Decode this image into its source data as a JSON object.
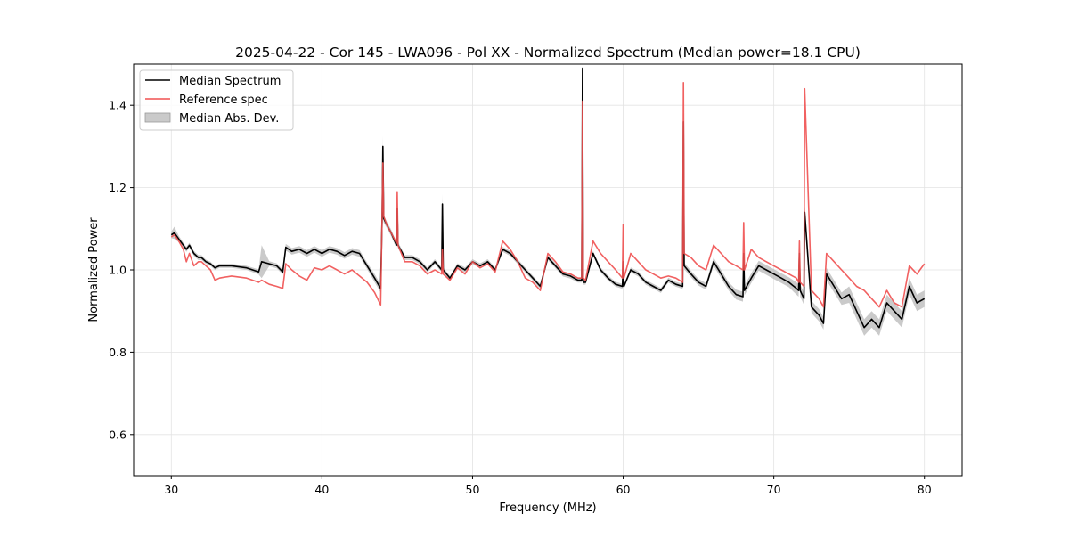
{
  "chart_data": {
    "type": "line",
    "title": "2025-04-22 - Cor 145 - LWA096 - Pol XX - Normalized Spectrum (Median power=18.1 CPU)",
    "xlabel": "Frequency (MHz)",
    "ylabel": "Normalized Power",
    "xlim": [
      27.5,
      82.5
    ],
    "ylim": [
      0.5,
      1.5
    ],
    "xticks": [
      30,
      40,
      50,
      60,
      70,
      80
    ],
    "yticks": [
      0.6,
      0.8,
      1.0,
      1.2,
      1.4
    ],
    "xtick_labels": [
      "30",
      "40",
      "50",
      "60",
      "70",
      "80"
    ],
    "ytick_labels": [
      "0.6",
      "0.8",
      "1.0",
      "1.2",
      "1.4"
    ],
    "grid": true,
    "legend_position": "top-left",
    "legend": [
      "Median Spectrum",
      "Reference spec",
      "Median Abs. Dev."
    ],
    "colors": {
      "median": "#000000",
      "reference": "#f05050",
      "mad": "#bdbdbd",
      "grid": "#e3e3e3"
    },
    "series": [
      {
        "name": "Median Spectrum",
        "x": [
          30.0,
          30.2,
          30.5,
          30.8,
          31.0,
          31.2,
          31.5,
          31.8,
          32.0,
          32.3,
          32.6,
          32.9,
          33.2,
          34.0,
          35.0,
          35.8,
          36.0,
          36.5,
          37.0,
          37.4,
          37.6,
          38.0,
          38.5,
          39.0,
          39.5,
          40.0,
          40.5,
          41.0,
          41.5,
          42.0,
          42.5,
          43.0,
          43.5,
          43.9,
          44.0,
          44.05,
          44.1,
          44.3,
          44.6,
          44.95,
          45.0,
          45.05,
          45.5,
          46.0,
          46.5,
          47.0,
          47.5,
          47.95,
          48.0,
          48.05,
          48.5,
          49.0,
          49.5,
          50.0,
          50.5,
          51.0,
          51.5,
          52.0,
          52.5,
          53.0,
          53.5,
          54.0,
          54.5,
          55.0,
          55.5,
          56.0,
          56.5,
          57.0,
          57.25,
          57.3,
          57.35,
          57.5,
          58.0,
          58.5,
          59.0,
          59.5,
          59.95,
          60.0,
          60.05,
          60.5,
          61.0,
          61.5,
          62.0,
          62.5,
          63.0,
          63.5,
          63.95,
          64.0,
          64.05,
          64.5,
          65.0,
          65.5,
          66.0,
          66.5,
          67.0,
          67.5,
          67.95,
          68.0,
          68.05,
          68.5,
          69.0,
          69.5,
          70.0,
          70.5,
          71.0,
          71.5,
          71.65,
          71.7,
          71.75,
          72.0,
          72.05,
          72.5,
          73.0,
          73.3,
          73.5,
          74.0,
          74.5,
          75.0,
          75.5,
          76.0,
          76.5,
          77.0,
          77.5,
          78.0,
          78.5,
          79.0,
          79.5,
          80.0
        ],
        "values": [
          1.085,
          1.09,
          1.075,
          1.06,
          1.05,
          1.06,
          1.04,
          1.03,
          1.03,
          1.02,
          1.015,
          1.005,
          1.01,
          1.01,
          1.005,
          0.995,
          1.02,
          1.015,
          1.01,
          0.995,
          1.055,
          1.045,
          1.05,
          1.04,
          1.05,
          1.04,
          1.05,
          1.045,
          1.035,
          1.045,
          1.04,
          1.01,
          0.98,
          0.955,
          1.13,
          1.3,
          1.125,
          1.11,
          1.09,
          1.06,
          1.15,
          1.06,
          1.03,
          1.03,
          1.02,
          1.0,
          1.02,
          1.0,
          1.16,
          1.0,
          0.98,
          1.01,
          1.0,
          1.02,
          1.01,
          1.02,
          1.0,
          1.05,
          1.04,
          1.02,
          1.0,
          0.98,
          0.96,
          1.03,
          1.01,
          0.99,
          0.985,
          0.975,
          0.975,
          1.49,
          0.97,
          0.97,
          1.04,
          1.0,
          0.98,
          0.965,
          0.96,
          1.02,
          0.96,
          1.0,
          0.99,
          0.97,
          0.96,
          0.95,
          0.975,
          0.965,
          0.96,
          1.36,
          1.01,
          0.99,
          0.97,
          0.96,
          1.02,
          0.99,
          0.96,
          0.94,
          0.935,
          1.04,
          0.95,
          0.98,
          1.01,
          1.0,
          0.99,
          0.98,
          0.97,
          0.955,
          0.95,
          1.04,
          0.95,
          0.93,
          1.14,
          0.91,
          0.89,
          0.87,
          0.99,
          0.96,
          0.93,
          0.94,
          0.9,
          0.86,
          0.88,
          0.86,
          0.92,
          0.9,
          0.88,
          0.96,
          0.92,
          0.93
        ]
      },
      {
        "name": "Reference spec",
        "x": [
          30.0,
          30.2,
          30.5,
          30.8,
          31.0,
          31.2,
          31.5,
          31.8,
          32.0,
          32.3,
          32.6,
          32.9,
          33.2,
          34.0,
          35.0,
          35.8,
          36.0,
          36.5,
          37.0,
          37.4,
          37.6,
          38.0,
          38.5,
          39.0,
          39.5,
          40.0,
          40.5,
          41.0,
          41.5,
          42.0,
          42.5,
          43.0,
          43.5,
          43.9,
          44.0,
          44.05,
          44.1,
          44.3,
          44.6,
          44.95,
          45.0,
          45.05,
          45.5,
          46.0,
          46.5,
          47.0,
          47.5,
          47.95,
          48.0,
          48.05,
          48.5,
          49.0,
          49.5,
          50.0,
          50.5,
          51.0,
          51.5,
          52.0,
          52.5,
          53.0,
          53.5,
          54.0,
          54.5,
          55.0,
          55.5,
          56.0,
          56.5,
          57.0,
          57.25,
          57.3,
          57.35,
          57.5,
          58.0,
          58.5,
          59.0,
          59.5,
          59.95,
          60.0,
          60.05,
          60.5,
          61.0,
          61.5,
          62.0,
          62.5,
          63.0,
          63.5,
          63.95,
          64.0,
          64.05,
          64.5,
          65.0,
          65.5,
          66.0,
          66.5,
          67.0,
          67.5,
          67.95,
          68.0,
          68.05,
          68.5,
          69.0,
          69.5,
          70.0,
          70.5,
          71.0,
          71.5,
          71.65,
          71.7,
          71.75,
          72.0,
          72.05,
          72.5,
          73.0,
          73.3,
          73.5,
          74.0,
          74.5,
          75.0,
          75.5,
          76.0,
          76.5,
          77.0,
          77.5,
          78.0,
          78.5,
          79.0,
          79.5,
          80.0
        ],
        "values": [
          1.08,
          1.085,
          1.07,
          1.05,
          1.02,
          1.04,
          1.01,
          1.02,
          1.02,
          1.01,
          1.0,
          0.975,
          0.98,
          0.985,
          0.98,
          0.97,
          0.975,
          0.965,
          0.96,
          0.955,
          1.015,
          1.0,
          0.985,
          0.975,
          1.005,
          1.0,
          1.01,
          1.0,
          0.99,
          1.0,
          0.985,
          0.97,
          0.945,
          0.915,
          1.14,
          1.26,
          1.13,
          1.11,
          1.09,
          1.065,
          1.19,
          1.06,
          1.02,
          1.02,
          1.01,
          0.99,
          1.0,
          0.99,
          1.05,
          0.99,
          0.975,
          1.005,
          0.99,
          1.02,
          1.005,
          1.015,
          0.995,
          1.07,
          1.05,
          1.02,
          0.98,
          0.97,
          0.95,
          1.04,
          1.02,
          0.995,
          0.99,
          0.98,
          0.98,
          1.41,
          0.98,
          0.975,
          1.07,
          1.04,
          1.02,
          1.0,
          0.98,
          1.11,
          0.98,
          1.04,
          1.02,
          1.0,
          0.99,
          0.98,
          0.985,
          0.98,
          0.97,
          1.455,
          1.04,
          1.03,
          1.01,
          1.0,
          1.06,
          1.04,
          1.02,
          1.01,
          1.0,
          1.115,
          1.0,
          1.05,
          1.03,
          1.02,
          1.01,
          1.0,
          0.99,
          0.98,
          0.97,
          1.07,
          0.97,
          0.96,
          1.44,
          0.95,
          0.93,
          0.91,
          1.04,
          1.02,
          1.0,
          0.98,
          0.96,
          0.95,
          0.93,
          0.91,
          0.95,
          0.92,
          0.91,
          1.01,
          0.99,
          1.015
        ]
      },
      {
        "name": "Median Abs. Dev.",
        "type": "band",
        "note": "shaded region median ± deviation",
        "deviation": [
          0.008,
          0.015,
          0.008,
          0.006,
          0.006,
          0.006,
          0.006,
          0.006,
          0.006,
          0.005,
          0.005,
          0.005,
          0.005,
          0.005,
          0.005,
          0.006,
          0.04,
          0.006,
          0.006,
          0.006,
          0.008,
          0.008,
          0.008,
          0.008,
          0.008,
          0.008,
          0.008,
          0.008,
          0.008,
          0.008,
          0.008,
          0.008,
          0.01,
          0.01,
          0.01,
          0.025,
          0.01,
          0.008,
          0.008,
          0.008,
          0.02,
          0.008,
          0.006,
          0.006,
          0.006,
          0.006,
          0.006,
          0.006,
          0.025,
          0.006,
          0.006,
          0.006,
          0.006,
          0.006,
          0.006,
          0.006,
          0.006,
          0.006,
          0.006,
          0.006,
          0.006,
          0.006,
          0.006,
          0.006,
          0.006,
          0.006,
          0.006,
          0.006,
          0.006,
          0.01,
          0.006,
          0.006,
          0.006,
          0.006,
          0.006,
          0.006,
          0.006,
          0.006,
          0.006,
          0.006,
          0.006,
          0.006,
          0.006,
          0.006,
          0.006,
          0.006,
          0.006,
          0.04,
          0.008,
          0.008,
          0.008,
          0.008,
          0.01,
          0.01,
          0.01,
          0.012,
          0.012,
          0.01,
          0.012,
          0.012,
          0.012,
          0.012,
          0.012,
          0.012,
          0.012,
          0.015,
          0.015,
          0.02,
          0.015,
          0.015,
          0.02,
          0.015,
          0.015,
          0.015,
          0.015,
          0.015,
          0.015,
          0.02,
          0.02,
          0.02,
          0.02,
          0.02,
          0.02,
          0.02,
          0.02,
          0.02,
          0.02,
          0.02
        ]
      }
    ]
  }
}
